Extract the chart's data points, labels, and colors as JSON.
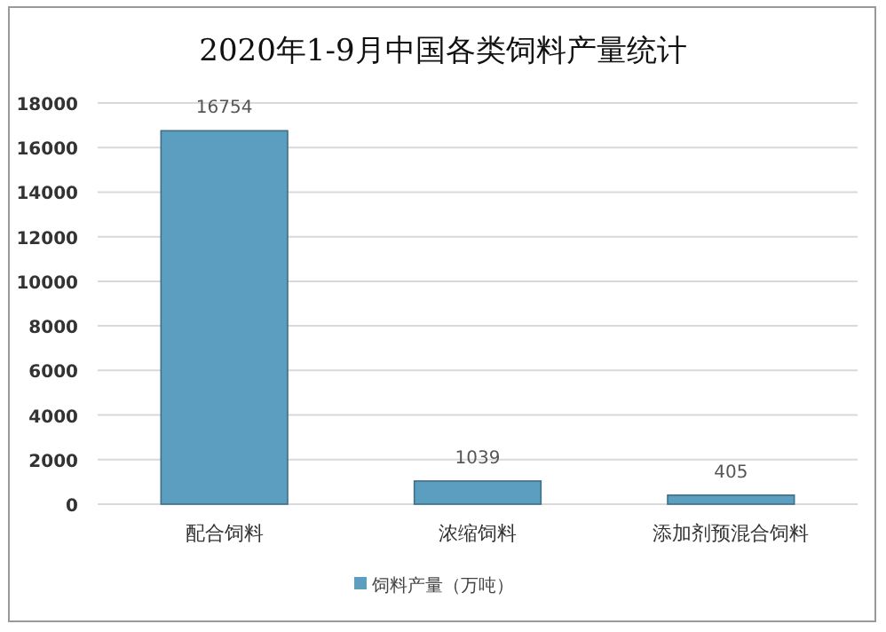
{
  "chart_data": {
    "type": "bar",
    "title": "2020年1-9月中国各类饲料产量统计",
    "categories": [
      "配合饲料",
      "浓缩饲料",
      "添加剂预混合饲料"
    ],
    "series": [
      {
        "name": "饲料产量（万吨）",
        "color": "#5b9ebf",
        "values": [
          16754,
          1039,
          405
        ]
      }
    ],
    "ylim": [
      0,
      18000
    ],
    "yticks": [
      0,
      2000,
      4000,
      6000,
      8000,
      10000,
      12000,
      14000,
      16000,
      18000
    ],
    "grid": "y",
    "legend": "bottom",
    "data_labels": true
  }
}
